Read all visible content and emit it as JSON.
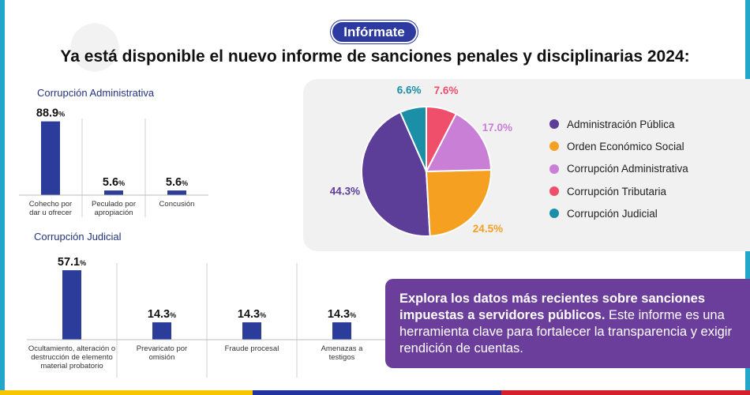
{
  "badge": "Infórmate",
  "headline": "Ya está disponible el nuevo informe de sanciones penales y disciplinarias 2024:",
  "flag_colors": [
    "#f7c600",
    "#2233a0",
    "#d51f2a"
  ],
  "colors": {
    "bar": "#2b3c9a",
    "badge_bg": "#2d3aa0",
    "panel_bg": "#f1f1f2",
    "callout_bg": "#6c3e9c",
    "frame": "#22a6c9"
  },
  "callout": {
    "bold": "Explora los datos más recientes sobre sanciones impuestas a servidores públicos.",
    "text": " Este informe es una herramienta clave para fortalecer la transparencia y exigir rendición de cuentas."
  },
  "chart_data": [
    {
      "type": "bar",
      "title": "Corrupción Administrativa",
      "categories": [
        [
          "Cohecho por",
          "dar u ofrecer"
        ],
        [
          "Peculado por",
          "apropiación"
        ],
        [
          "Concusión"
        ]
      ],
      "values": [
        88.9,
        5.6,
        5.6
      ],
      "value_labels": [
        "88.9",
        "5.6",
        "5.6"
      ],
      "unit": "%",
      "ylim": [
        0,
        100
      ],
      "grid": false
    },
    {
      "type": "bar",
      "title": "Corrupción Judicial",
      "categories": [
        [
          "Ocultamiento, alteración o",
          "destrucción de elemento",
          "material probatorio"
        ],
        [
          "Prevaricato por",
          "omisión"
        ],
        [
          "Fraude procesal"
        ],
        [
          "Amenazas a",
          "testigos"
        ]
      ],
      "values": [
        57.1,
        14.3,
        14.3,
        14.3
      ],
      "value_labels": [
        "57.1",
        "14.3",
        "14.3",
        "14.3"
      ],
      "unit": "%",
      "ylim": [
        0,
        100
      ],
      "grid": false
    },
    {
      "type": "pie",
      "legend": "right",
      "series": [
        {
          "name": "Administración Pública",
          "value": 44.3,
          "label": "44.3%",
          "color": "#5c3d97"
        },
        {
          "name": "Orden Económico Social",
          "value": 24.5,
          "label": "24.5%",
          "color": "#f6a022"
        },
        {
          "name": "Corrupción Administrativa",
          "value": 17.0,
          "label": "17.0%",
          "color": "#c97fd6"
        },
        {
          "name": "Corrupción Tributaria",
          "value": 7.6,
          "label": "7.6%",
          "color": "#ef4f6b"
        },
        {
          "name": "Corrupción Judicial",
          "value": 6.6,
          "label": "6.6%",
          "color": "#1a8fa6"
        }
      ]
    }
  ]
}
